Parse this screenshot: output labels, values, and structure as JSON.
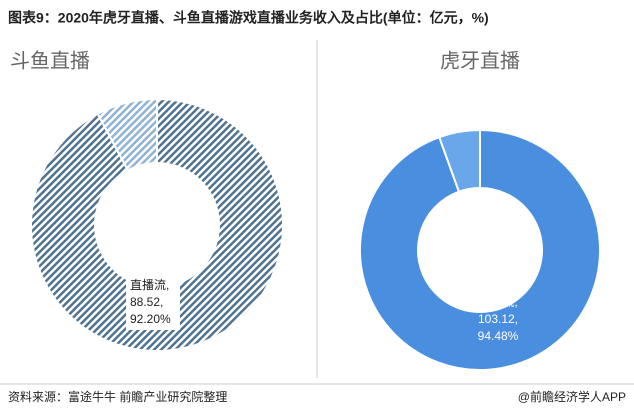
{
  "title": "图表9：2020年虎牙直播、斗鱼直播游戏直播业务收入及占比(单位：亿元，%)",
  "source": "资料来源：富途牛牛 前瞻产业研究院整理",
  "watermark": "@前瞻经济学人APP",
  "chart_data": [
    {
      "type": "donut",
      "title": "斗鱼直播",
      "hatch": true,
      "categories": [
        "直播流,",
        null
      ],
      "values": [
        88.52,
        7.49
      ],
      "value_labels": [
        "88.52,",
        null
      ],
      "percents": [
        92.2,
        7.8
      ],
      "percent_labels": [
        "92.20%",
        null
      ],
      "colors": [
        "#4f7391",
        "#8fb3d4"
      ]
    },
    {
      "type": "donut",
      "title": "虎牙直播",
      "hatch": false,
      "categories": [
        "直播流,",
        null
      ],
      "values": [
        103.12,
        6.02
      ],
      "value_labels": [
        "103.12,",
        null
      ],
      "percents": [
        94.48,
        5.52
      ],
      "percent_labels": [
        "94.48%",
        null
      ],
      "colors": [
        "#4a8ee0",
        "#6aa6ea"
      ]
    }
  ]
}
